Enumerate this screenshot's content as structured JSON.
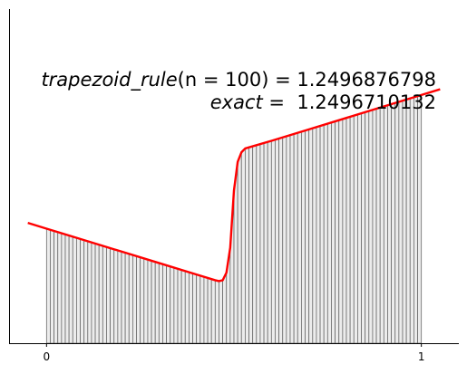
{
  "chart_data": {
    "type": "area",
    "title": "",
    "xlabel": "",
    "ylabel": "",
    "xlim": [
      -0.1,
      1.1
    ],
    "ylim": [
      0,
      1.75
    ],
    "xticks": [
      0,
      1
    ],
    "xtick_labels": [
      "0",
      "1"
    ],
    "yticks": [],
    "grid": false,
    "n_subintervals": 100,
    "function_curve": {
      "color": "#ff0000",
      "points": [
        [
          -0.05,
          0.63
        ],
        [
          0.0,
          0.6
        ],
        [
          0.1,
          0.54
        ],
        [
          0.2,
          0.48
        ],
        [
          0.3,
          0.42
        ],
        [
          0.4,
          0.36
        ],
        [
          0.45,
          0.33
        ],
        [
          0.46,
          0.325
        ],
        [
          0.47,
          0.33
        ],
        [
          0.48,
          0.37
        ],
        [
          0.49,
          0.5
        ],
        [
          0.5,
          0.8
        ],
        [
          0.51,
          0.95
        ],
        [
          0.52,
          1.0
        ],
        [
          0.53,
          1.02
        ],
        [
          0.6,
          1.06
        ],
        [
          0.7,
          1.12
        ],
        [
          0.8,
          1.18
        ],
        [
          0.9,
          1.24
        ],
        [
          1.0,
          1.3
        ],
        [
          1.05,
          1.33
        ]
      ]
    },
    "annotations": [
      {
        "lhs": "trapezoid_rule",
        "arg": "(n = 100) = ",
        "value": "1.2496876798"
      },
      {
        "lhs": "exact",
        "eq": " =  ",
        "value": "1.2496710132"
      }
    ]
  }
}
